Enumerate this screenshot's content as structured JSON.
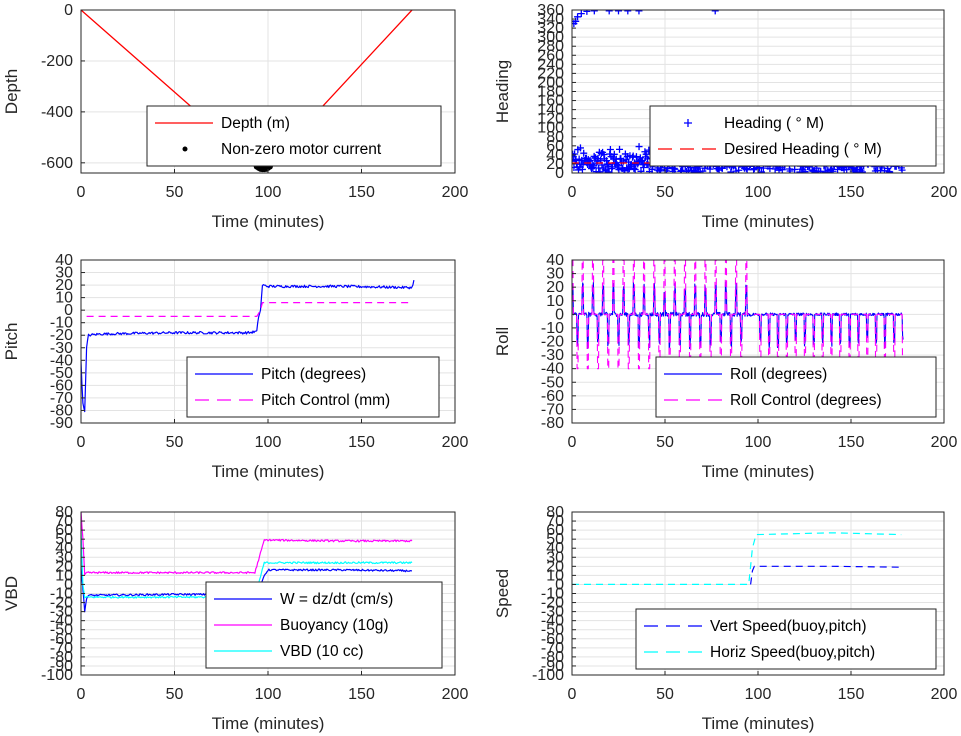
{
  "chart_data": [
    {
      "type": "line",
      "ylabel": "Depth",
      "xlabel": "Time (minutes)",
      "xlim": [
        0,
        200
      ],
      "ylim": [
        -640,
        0
      ],
      "xticks": [
        "0",
        "50",
        "100",
        "150",
        "200"
      ],
      "yticks": [
        0,
        -200,
        -400,
        -600
      ],
      "ytick_labels": [
        "0",
        "-200",
        "-400",
        "-600"
      ],
      "grid": true,
      "legend_position": "bottom-center",
      "series": [
        {
          "name": "Depth (m)",
          "color": "#ff0000",
          "style": "solid",
          "x": [
            0,
            97,
            98,
            177
          ],
          "y": [
            0,
            -625,
            -625,
            0
          ]
        },
        {
          "name": "Non-zero motor current",
          "color": "#000000",
          "style": "dots",
          "x": [
            94,
            95,
            96,
            97,
            98,
            99,
            100,
            101
          ],
          "y": [
            -615,
            -620,
            -624,
            -625,
            -625,
            -624,
            -620,
            -615
          ]
        }
      ]
    },
    {
      "type": "scatter",
      "ylabel": "Heading",
      "xlabel": "Time (minutes)",
      "xlim": [
        0,
        200
      ],
      "ylim": [
        0,
        360
      ],
      "xticks": [
        "0",
        "50",
        "100",
        "150",
        "200"
      ],
      "yticks": [
        0,
        20,
        40,
        60,
        80,
        100,
        120,
        140,
        160,
        180,
        200,
        220,
        240,
        260,
        280,
        300,
        320,
        340,
        360
      ],
      "ytick_labels": [
        "0",
        "20",
        "40",
        "60",
        "80",
        "100",
        "120",
        "140",
        "160",
        "180",
        "200",
        "220",
        "240",
        "260",
        "280",
        "300",
        "320",
        "340",
        "360"
      ],
      "grid": true,
      "legend_position": "lower-right",
      "series": [
        {
          "name": "Heading (  ° M)",
          "color": "#0000ff",
          "style": "plus",
          "x_range": [
            0,
            178
          ],
          "y_band": [
            2,
            65
          ],
          "high_points": [
            [
              1,
              330
            ],
            [
              2,
              335
            ],
            [
              3,
              345
            ],
            [
              5,
              352
            ],
            [
              8,
              357
            ],
            [
              12,
              358
            ],
            [
              20,
              358
            ],
            [
              25,
              358
            ],
            [
              30,
              358
            ],
            [
              36,
              358
            ],
            [
              77,
              358
            ]
          ]
        },
        {
          "name": "Desired Heading (  ° M)",
          "color": "#ff0000",
          "style": "dash",
          "x": [
            0,
            178
          ],
          "y": [
            22,
            22
          ]
        }
      ]
    },
    {
      "type": "line",
      "ylabel": "Pitch",
      "xlabel": "Time (minutes)",
      "xlim": [
        0,
        200
      ],
      "ylim": [
        -90,
        40
      ],
      "xticks": [
        "0",
        "50",
        "100",
        "150",
        "200"
      ],
      "yticks": [
        40,
        30,
        20,
        10,
        0,
        -10,
        -20,
        -30,
        -40,
        -50,
        -60,
        -70,
        -80,
        -90
      ],
      "ytick_labels": [
        "40",
        "30",
        "20",
        "10",
        "0",
        "-10",
        "-20",
        "-30",
        "-40",
        "-50",
        "-60",
        "-70",
        "-80",
        "-90"
      ],
      "grid": true,
      "legend_position": "lower-right",
      "series": [
        {
          "name": "Pitch (degrees)",
          "color": "#0000ff",
          "style": "solid",
          "x": [
            0,
            1,
            2,
            3,
            4,
            10,
            50,
            90,
            94,
            95,
            96,
            97,
            100,
            140,
            177,
            178
          ],
          "y": [
            -40,
            -75,
            -80,
            -30,
            -20,
            -19,
            -18,
            -18,
            -17,
            -5,
            0,
            20,
            19,
            19,
            18,
            24
          ]
        },
        {
          "name": "Pitch Control (mm)",
          "color": "#ff00ff",
          "style": "dash",
          "x": [
            3,
            94,
            96,
            97,
            177
          ],
          "y": [
            -5,
            -5,
            0,
            6,
            6
          ]
        }
      ]
    },
    {
      "type": "line",
      "ylabel": "Roll",
      "xlabel": "Time (minutes)",
      "xlim": [
        0,
        200
      ],
      "ylim": [
        -80,
        40
      ],
      "xticks": [
        "0",
        "50",
        "100",
        "150",
        "200"
      ],
      "yticks": [
        40,
        30,
        20,
        10,
        0,
        -10,
        -20,
        -30,
        -40,
        -50,
        -60,
        -70,
        -80
      ],
      "ytick_labels": [
        "40",
        "30",
        "20",
        "10",
        "0",
        "-10",
        "-20",
        "-30",
        "-40",
        "-50",
        "-60",
        "-70",
        "-80"
      ],
      "grid": true,
      "legend_position": "lower-right",
      "series": [
        {
          "name": "Roll (degrees)",
          "color": "#0000ff",
          "style": "solid",
          "descent_range": [
            0,
            96
          ],
          "descent_amplitude": [
            24,
            -26
          ],
          "ascent_range": [
            97,
            178
          ],
          "ascent_amplitude": [
            0,
            -25
          ]
        },
        {
          "name": "Roll Control (degrees)",
          "color": "#ff00ff",
          "style": "dash",
          "descent_range": [
            0,
            96
          ],
          "descent_amplitude": [
            40,
            -40
          ],
          "ascent_range": [
            97,
            178
          ],
          "ascent_amplitude": [
            0,
            -40
          ]
        }
      ]
    },
    {
      "type": "line",
      "ylabel": "VBD",
      "xlabel": "Time (minutes)",
      "xlim": [
        0,
        200
      ],
      "ylim": [
        -100,
        80
      ],
      "xticks": [
        "0",
        "50",
        "100",
        "150",
        "200"
      ],
      "yticks": [
        80,
        70,
        60,
        50,
        40,
        30,
        20,
        10,
        0,
        -10,
        -20,
        -30,
        -40,
        -50,
        -60,
        -70,
        -80,
        -90,
        -100
      ],
      "ytick_labels": [
        "80",
        "70",
        "60",
        "50",
        "40",
        "30",
        "20",
        "10",
        "0",
        "-10",
        "-20",
        "-30",
        "-40",
        "-50",
        "-60",
        "-70",
        "-80",
        "-90",
        "-100"
      ],
      "grid": true,
      "legend_position": "lower-right",
      "series": [
        {
          "name": "W = dz/dt (cm/s)",
          "color": "#0000ff",
          "style": "solid",
          "x": [
            0,
            1,
            2,
            3,
            4,
            50,
            93,
            95,
            98,
            100,
            140,
            177
          ],
          "y": [
            20,
            -5,
            -30,
            -15,
            -12,
            -11,
            -11,
            -8,
            10,
            16,
            16,
            15
          ]
        },
        {
          "name": "Buoyancy (10g)",
          "color": "#ff00ff",
          "style": "solid",
          "x": [
            0,
            1,
            2,
            3,
            4,
            93,
            98,
            100,
            140,
            177
          ],
          "y": [
            80,
            50,
            10,
            13,
            13,
            13,
            49,
            49,
            48,
            48
          ]
        },
        {
          "name": "VBD (10 cc)",
          "color": "#00ffff",
          "style": "solid",
          "x": [
            0,
            1,
            2,
            3,
            4,
            93,
            98,
            100,
            140,
            177
          ],
          "y": [
            60,
            0,
            -15,
            -14,
            -14,
            -14,
            24,
            24,
            24,
            24
          ]
        }
      ]
    },
    {
      "type": "line",
      "ylabel": "Speed",
      "xlabel": "Time (minutes)",
      "xlim": [
        0,
        200
      ],
      "ylim": [
        -100,
        80
      ],
      "xticks": [
        "0",
        "50",
        "100",
        "150",
        "200"
      ],
      "yticks": [
        80,
        70,
        60,
        50,
        40,
        30,
        20,
        10,
        0,
        -10,
        -20,
        -30,
        -40,
        -50,
        -60,
        -70,
        -80,
        -90,
        -100
      ],
      "ytick_labels": [
        "80",
        "70",
        "60",
        "50",
        "40",
        "30",
        "20",
        "10",
        "0",
        "-10",
        "-20",
        "-30",
        "-40",
        "-50",
        "-60",
        "-70",
        "-80",
        "-90",
        "-100"
      ],
      "grid": true,
      "legend_position": "lower-right",
      "series": [
        {
          "name": "Vert Speed(buoy,pitch)",
          "color": "#0000ff",
          "style": "dash",
          "x": [
            96,
            97,
            98,
            100,
            140,
            177
          ],
          "y": [
            0,
            15,
            20,
            20,
            20,
            19
          ]
        },
        {
          "name": "Horiz Speed(buoy,pitch)",
          "color": "#00ffff",
          "style": "dash",
          "x": [
            0,
            95,
            96,
            97,
            99,
            140,
            177
          ],
          "y": [
            0,
            0,
            20,
            40,
            55,
            57,
            55
          ]
        }
      ]
    }
  ]
}
